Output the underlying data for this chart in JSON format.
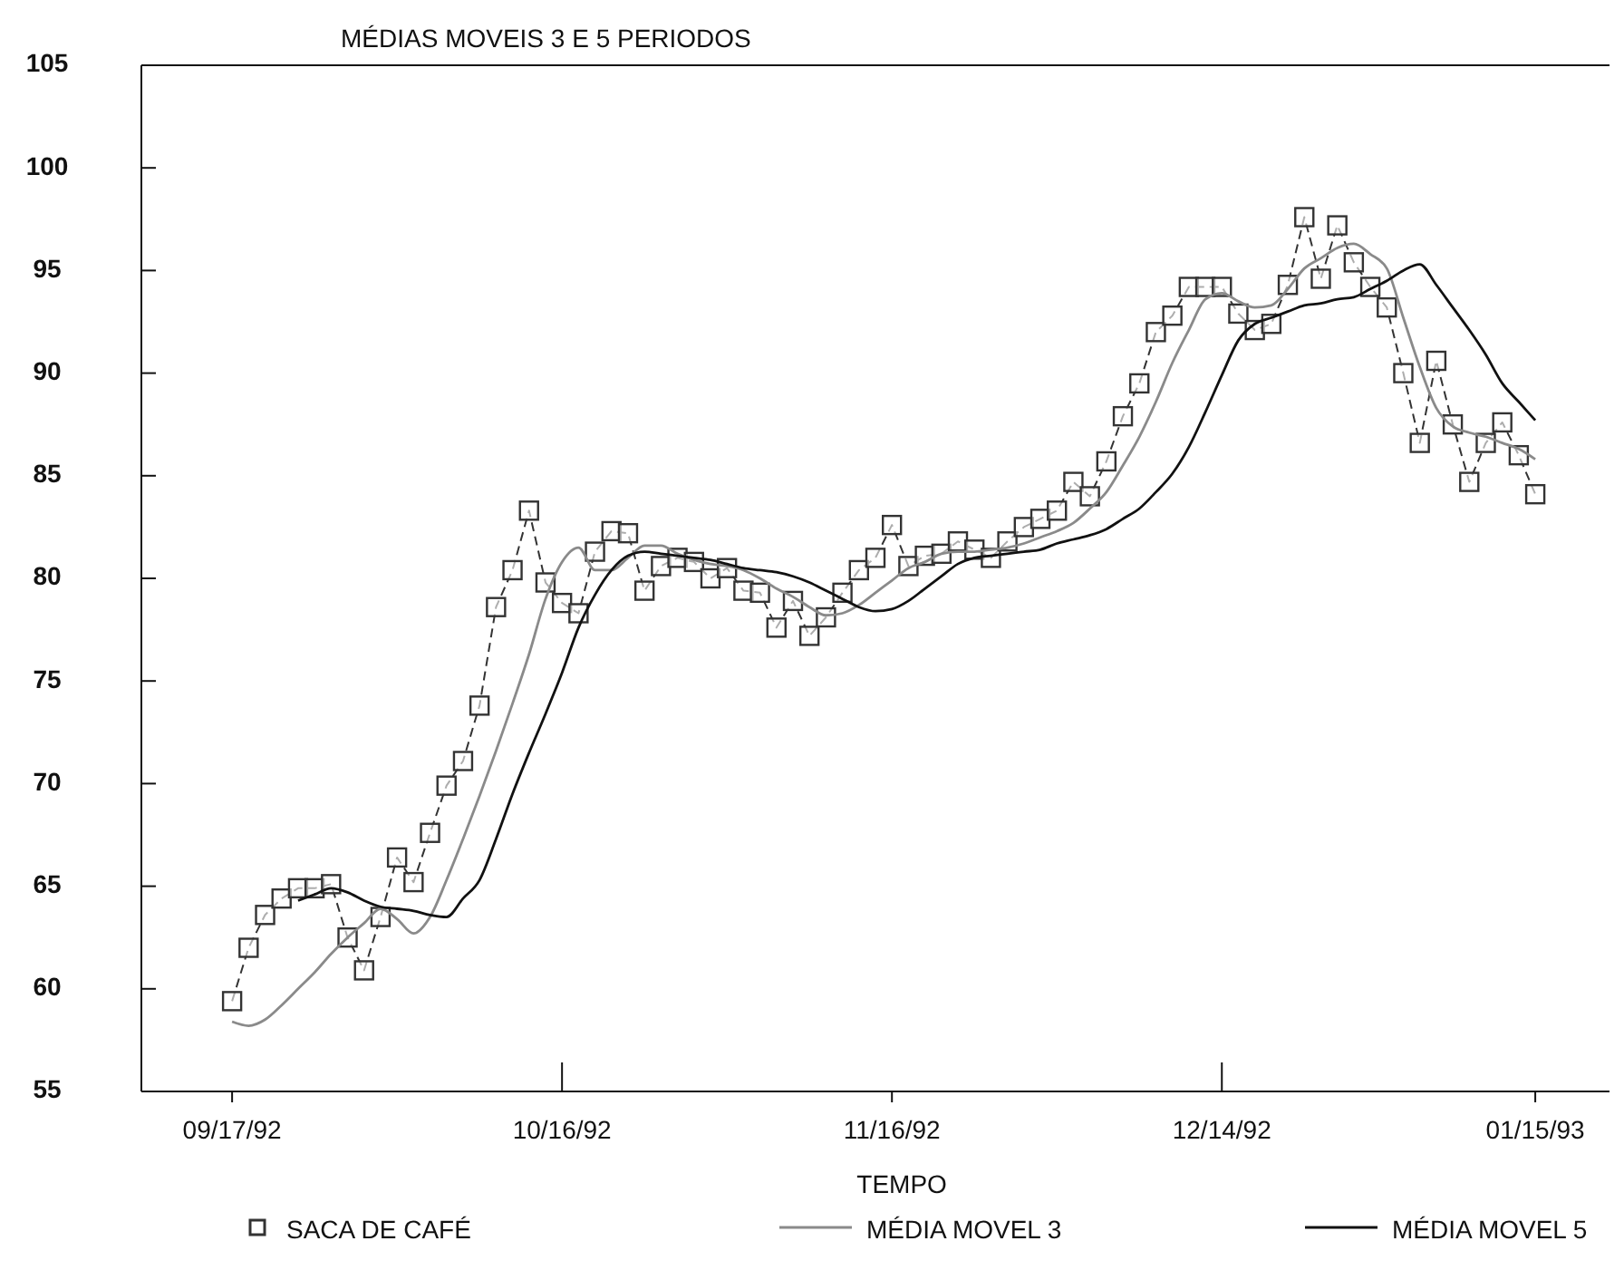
{
  "chart_data": {
    "type": "line",
    "title": "MÉDIAS MOVEIS 3 E 5 PERIODOS",
    "xlabel": "TEMPO",
    "categories": [
      "09/17/92",
      null,
      null,
      null,
      null,
      null,
      null,
      null,
      null,
      null,
      null,
      null,
      null,
      null,
      null,
      null,
      null,
      null,
      null,
      null,
      "10/16/92",
      null,
      null,
      null,
      null,
      null,
      null,
      null,
      null,
      null,
      null,
      null,
      null,
      null,
      null,
      null,
      null,
      null,
      null,
      null,
      "11/16/92",
      null,
      null,
      null,
      null,
      null,
      null,
      null,
      null,
      null,
      null,
      null,
      null,
      null,
      null,
      null,
      null,
      null,
      null,
      null,
      "12/14/92",
      null,
      null,
      null,
      null,
      null,
      null,
      null,
      null,
      null,
      null,
      null,
      null,
      null,
      null,
      null,
      null,
      null,
      null,
      "01/15/93"
    ],
    "ylim": [
      55,
      105
    ],
    "yticks": [
      55,
      60,
      65,
      70,
      75,
      80,
      85,
      90,
      95,
      100,
      105
    ],
    "grid": false,
    "legend": "bottom",
    "series": [
      {
        "name": "SACA DE CAFÉ",
        "color": "#333333",
        "marker": "square",
        "line_style": "dashed",
        "values": [
          59.4,
          62.0,
          63.6,
          64.4,
          64.9,
          64.9,
          65.1,
          62.5,
          60.9,
          63.5,
          66.4,
          65.2,
          67.6,
          69.9,
          71.1,
          73.8,
          78.6,
          80.4,
          83.3,
          79.8,
          78.8,
          78.3,
          81.3,
          82.3,
          82.2,
          79.4,
          80.6,
          81.0,
          80.8,
          80.0,
          80.5,
          79.4,
          79.3,
          77.6,
          78.9,
          77.2,
          78.1,
          79.3,
          80.4,
          81.0,
          82.6,
          80.6,
          81.1,
          81.2,
          81.8,
          81.4,
          81.0,
          81.8,
          82.5,
          82.9,
          83.3,
          84.7,
          84.0,
          85.7,
          87.9,
          89.5,
          92.0,
          92.8,
          94.2,
          94.2,
          94.2,
          92.9,
          92.1,
          92.4,
          94.3,
          97.6,
          94.6,
          97.2,
          95.4,
          94.2,
          93.2,
          90.0,
          86.6,
          90.6,
          87.5,
          84.7,
          86.6,
          87.6,
          86.0,
          84.1
        ]
      },
      {
        "name": "MÉDIA MOVEL 3",
        "color": "#8a8a8a",
        "marker": "none",
        "line_style": "solid",
        "values": [
          58.4,
          58.2,
          58.5,
          59.2,
          60.0,
          60.8,
          61.7,
          62.5,
          63.2,
          63.9,
          63.4,
          62.7,
          63.5,
          65.3,
          67.3,
          69.4,
          71.6,
          73.9,
          76.3,
          79.0,
          80.8,
          81.5,
          80.4,
          80.4,
          81.0,
          81.6,
          81.6,
          81.2,
          80.9,
          80.7,
          80.6,
          80.4,
          80.0,
          79.5,
          79.1,
          78.6,
          78.2,
          78.3,
          78.7,
          79.3,
          79.9,
          80.5,
          80.8,
          81.2,
          81.3,
          81.3,
          81.4,
          81.5,
          81.7,
          82.0,
          82.3,
          82.7,
          83.4,
          84.2,
          85.5,
          86.9,
          88.6,
          90.5,
          92.1,
          93.6,
          93.9,
          93.5,
          93.2,
          93.3,
          94.1,
          95.1,
          95.6,
          96.1,
          96.3,
          95.8,
          95.1,
          92.7,
          90.3,
          88.3,
          87.4,
          87.1,
          86.9,
          86.6,
          86.3,
          85.8
        ]
      },
      {
        "name": "MÉDIA MOVEL 5",
        "color": "#111111",
        "marker": "none",
        "line_style": "solid",
        "values": [
          null,
          null,
          null,
          null,
          64.3,
          64.6,
          64.9,
          64.7,
          64.3,
          64.0,
          63.9,
          63.8,
          63.6,
          63.5,
          64.4,
          65.3,
          67.3,
          69.5,
          71.5,
          73.4,
          75.4,
          77.6,
          79.2,
          80.4,
          81.1,
          81.3,
          81.2,
          81.1,
          81.0,
          80.9,
          80.7,
          80.5,
          80.4,
          80.3,
          80.1,
          79.8,
          79.4,
          79.0,
          78.6,
          78.4,
          78.5,
          78.9,
          79.5,
          80.1,
          80.7,
          81.0,
          81.1,
          81.2,
          81.3,
          81.4,
          81.7,
          81.9,
          82.1,
          82.4,
          82.9,
          83.4,
          84.2,
          85.1,
          86.4,
          88.1,
          89.9,
          91.6,
          92.4,
          92.7,
          93.0,
          93.3,
          93.4,
          93.6,
          93.7,
          94.1,
          94.5,
          95.0,
          95.3,
          94.3,
          93.2,
          92.1,
          90.9,
          89.5,
          88.6,
          87.7
        ]
      }
    ]
  }
}
